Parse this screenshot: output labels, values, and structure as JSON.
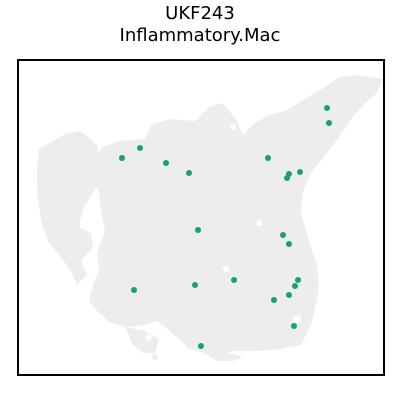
{
  "title": {
    "line1": "UKF243",
    "line2": "Inflammatory.Mac"
  },
  "colors": {
    "tissue_spot": "#ededed",
    "highlight_spot": "#1a9e72",
    "frame": "#000000",
    "background": "#ffffff"
  }
}
